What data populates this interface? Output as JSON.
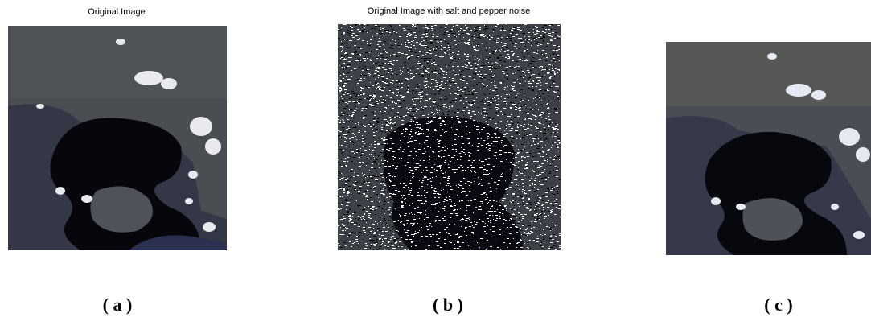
{
  "panels": [
    {
      "title": "Original Image",
      "caption": "( a )"
    },
    {
      "title": "Original Image with salt and pepper noise",
      "caption": "( b )"
    },
    {
      "caption": "( c )"
    }
  ]
}
